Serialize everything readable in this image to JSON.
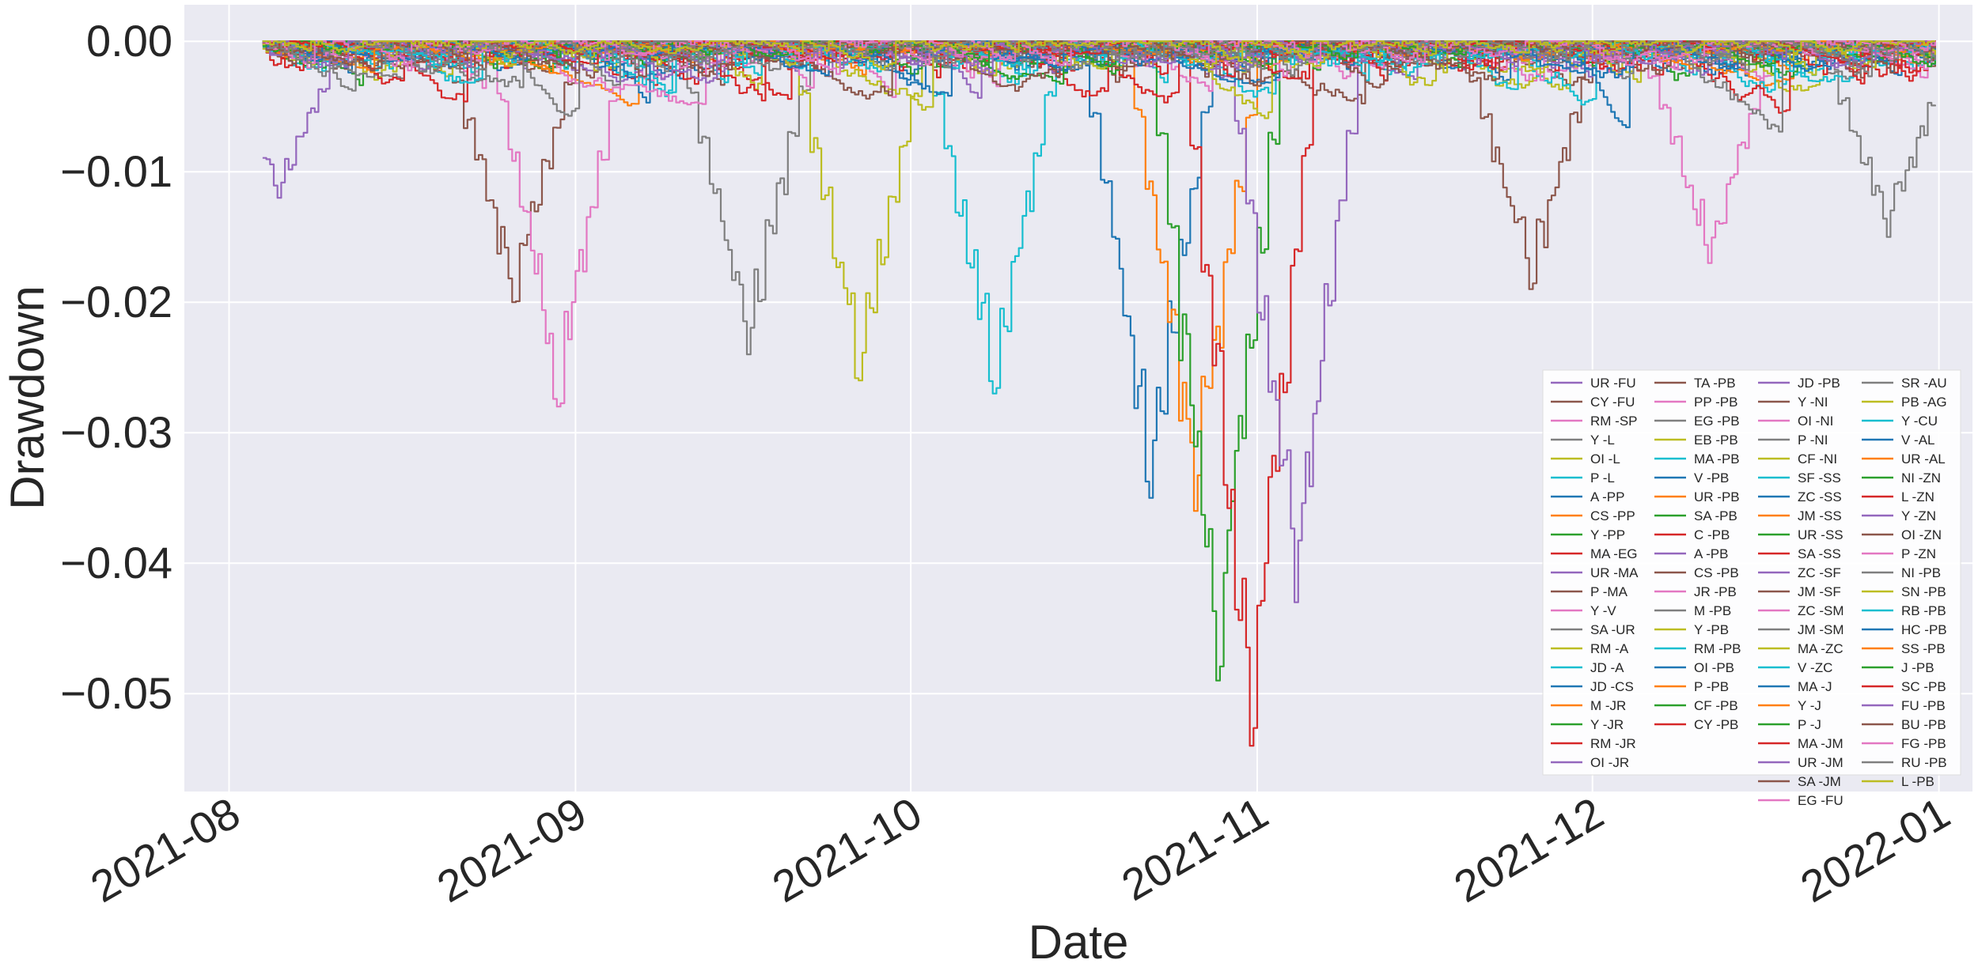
{
  "chart_data": {
    "type": "line",
    "style": "seaborn-darkgrid",
    "xlabel": "Date",
    "ylabel": "Drawdown",
    "x_axis": "date",
    "xlim": [
      "2021-07-28",
      "2022-01-04"
    ],
    "ylim": [
      -0.0575,
      0.0028
    ],
    "x_ticks": [
      "2021-08-01",
      "2021-09-01",
      "2021-10-01",
      "2021-11-01",
      "2021-12-01",
      "2022-01-01"
    ],
    "x_tick_labels": [
      "2021-08",
      "2021-09",
      "2021-10",
      "2021-11",
      "2021-12",
      "2022-01"
    ],
    "y_ticks": [
      0.0,
      -0.01,
      -0.02,
      -0.03,
      -0.04,
      -0.05
    ],
    "y_tick_labels": [
      "0.00",
      "−0.01",
      "−0.02",
      "−0.03",
      "−0.04",
      "−0.05"
    ],
    "grid": true,
    "legend_position": "lower-right",
    "legend_columns": 4,
    "date_range": [
      "2021-08-04",
      "2021-12-31"
    ],
    "palette": [
      "#9467bd",
      "#8c564b",
      "#e377c2",
      "#7f7f7f",
      "#bcbd22",
      "#17becf",
      "#1f77b4",
      "#ff7f0e",
      "#2ca02c",
      "#d62728"
    ],
    "series": [
      {
        "name": "UR -FU"
      },
      {
        "name": "CY -FU"
      },
      {
        "name": "RM -SP"
      },
      {
        "name": "Y -L"
      },
      {
        "name": "OI -L"
      },
      {
        "name": "P -L"
      },
      {
        "name": "A -PP"
      },
      {
        "name": "CS -PP"
      },
      {
        "name": "Y -PP"
      },
      {
        "name": "MA -EG"
      },
      {
        "name": "UR -MA"
      },
      {
        "name": "P -MA"
      },
      {
        "name": "Y -V"
      },
      {
        "name": "SA -UR"
      },
      {
        "name": "RM -A"
      },
      {
        "name": "JD -A"
      },
      {
        "name": "JD -CS"
      },
      {
        "name": "M -JR"
      },
      {
        "name": "Y -JR"
      },
      {
        "name": "RM -JR"
      },
      {
        "name": "OI -JR"
      },
      {
        "name": "TA -PB"
      },
      {
        "name": "PP -PB"
      },
      {
        "name": "EG -PB"
      },
      {
        "name": "EB -PB"
      },
      {
        "name": "MA -PB"
      },
      {
        "name": "V -PB"
      },
      {
        "name": "UR -PB"
      },
      {
        "name": "SA -PB"
      },
      {
        "name": "C -PB"
      },
      {
        "name": "A -PB"
      },
      {
        "name": "CS -PB"
      },
      {
        "name": "JR -PB"
      },
      {
        "name": "M -PB"
      },
      {
        "name": "Y -PB"
      },
      {
        "name": "RM -PB"
      },
      {
        "name": "OI -PB"
      },
      {
        "name": "P -PB"
      },
      {
        "name": "CF -PB"
      },
      {
        "name": "CY -PB"
      },
      {
        "name": "JD -PB"
      },
      {
        "name": "Y -NI"
      },
      {
        "name": "OI -NI"
      },
      {
        "name": "P -NI"
      },
      {
        "name": "CF -NI"
      },
      {
        "name": "SF -SS"
      },
      {
        "name": "ZC -SS"
      },
      {
        "name": "JM -SS"
      },
      {
        "name": "UR -SS"
      },
      {
        "name": "SA -SS"
      },
      {
        "name": "ZC -SF"
      },
      {
        "name": "JM -SF"
      },
      {
        "name": "ZC -SM"
      },
      {
        "name": "JM -SM"
      },
      {
        "name": "MA -ZC"
      },
      {
        "name": "V -ZC"
      },
      {
        "name": "MA -J"
      },
      {
        "name": "Y -J"
      },
      {
        "name": "P -J"
      },
      {
        "name": "MA -JM"
      },
      {
        "name": "UR -JM"
      },
      {
        "name": "SA -JM"
      },
      {
        "name": "EG -FU"
      },
      {
        "name": "SR -AU"
      },
      {
        "name": "PB -AG"
      },
      {
        "name": "Y -CU"
      },
      {
        "name": "V -AL"
      },
      {
        "name": "UR -AL"
      },
      {
        "name": "NI -ZN"
      },
      {
        "name": "L -ZN"
      },
      {
        "name": "Y -ZN"
      },
      {
        "name": "OI -ZN"
      },
      {
        "name": "P -ZN"
      },
      {
        "name": "NI -PB"
      },
      {
        "name": "SN -PB"
      },
      {
        "name": "RB -PB"
      },
      {
        "name": "HC -PB"
      },
      {
        "name": "SS -PB"
      },
      {
        "name": "J -PB"
      },
      {
        "name": "SC -PB"
      },
      {
        "name": "FU -PB"
      },
      {
        "name": "BU -PB"
      },
      {
        "name": "FG -PB"
      },
      {
        "name": "RU -PB"
      },
      {
        "name": "L -PB"
      }
    ],
    "notable_troughs": [
      {
        "x": "2021-08-05",
        "y": -0.012
      },
      {
        "x": "2021-08-26",
        "y": -0.02
      },
      {
        "x": "2021-08-30",
        "y": -0.028
      },
      {
        "x": "2021-09-16",
        "y": -0.024
      },
      {
        "x": "2021-09-26",
        "y": -0.026
      },
      {
        "x": "2021-10-08",
        "y": -0.027
      },
      {
        "x": "2021-10-22",
        "y": -0.035
      },
      {
        "x": "2021-10-26",
        "y": -0.036
      },
      {
        "x": "2021-10-28",
        "y": -0.049
      },
      {
        "x": "2021-10-31",
        "y": -0.054
      },
      {
        "x": "2021-11-04",
        "y": -0.043
      },
      {
        "x": "2021-11-25",
        "y": -0.019
      },
      {
        "x": "2021-12-11",
        "y": -0.017
      },
      {
        "x": "2021-12-27",
        "y": -0.015
      }
    ]
  }
}
